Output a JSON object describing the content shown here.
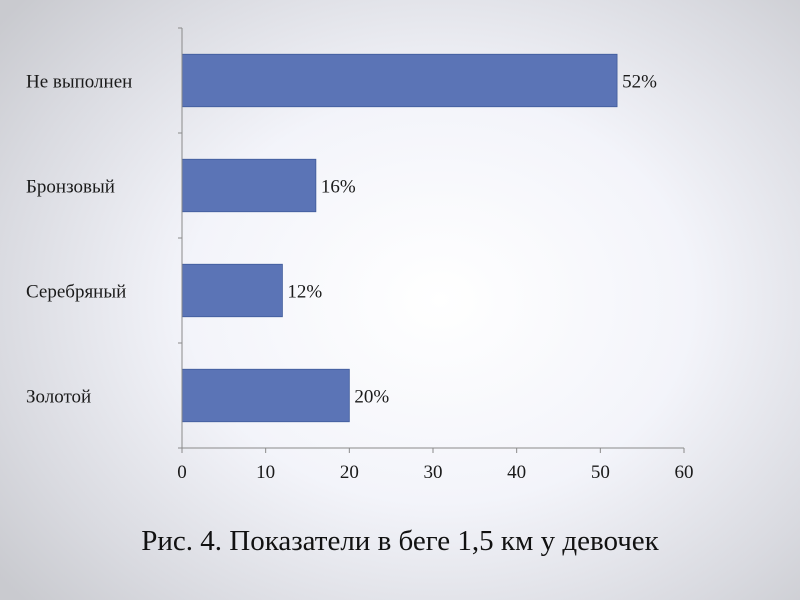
{
  "chart_data": {
    "type": "bar",
    "orientation": "horizontal",
    "categories": [
      "Золотой",
      "Серебряный",
      "Бронзовый",
      "Не выполнен"
    ],
    "values": [
      20,
      12,
      16,
      52
    ],
    "data_labels": [
      "20%",
      "12%",
      "16%",
      "52%"
    ],
    "xlim": [
      0,
      60
    ],
    "xticks": [
      0,
      10,
      20,
      30,
      40,
      50,
      60
    ],
    "bar_color": "#5b74b6",
    "grid": false,
    "legend": "none"
  },
  "caption": "Рис. 4. Показатели в беге 1,5 км  у девочек"
}
